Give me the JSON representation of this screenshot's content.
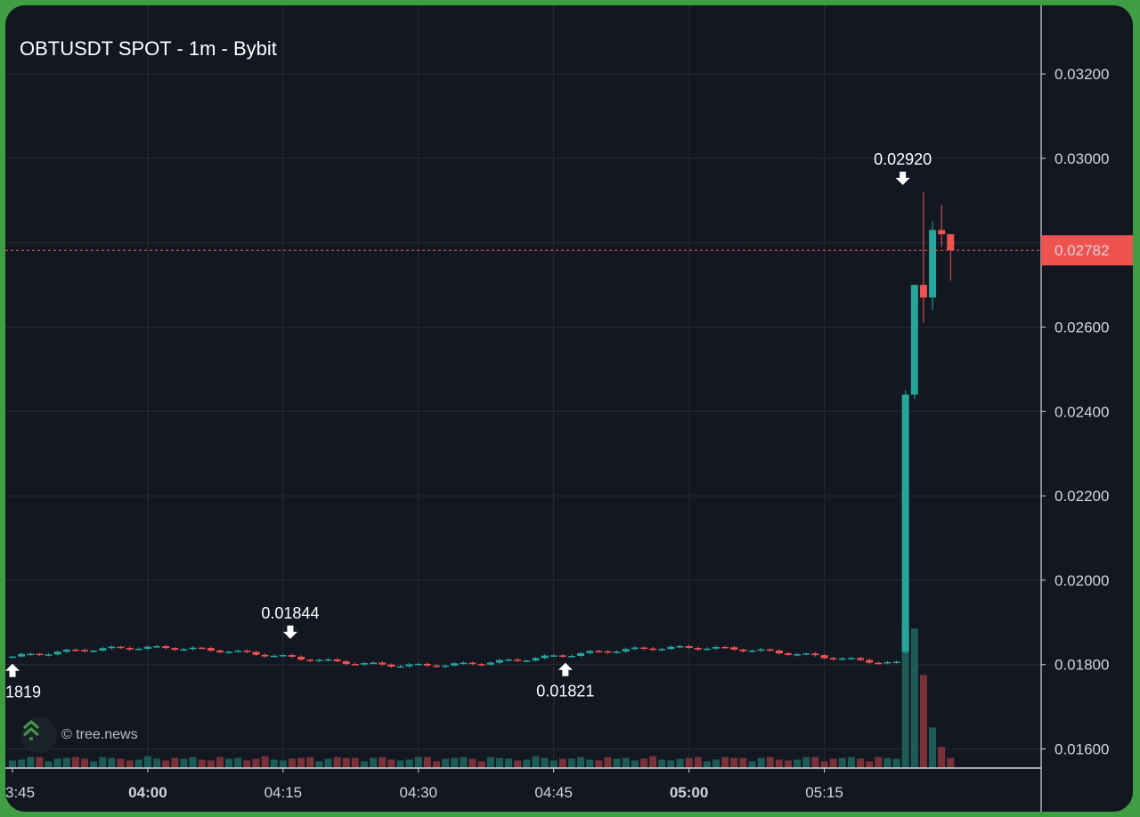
{
  "title": "OBTUSDT SPOT - 1m - Bybit",
  "watermark": "© tree.news",
  "colors": {
    "background": "#131722",
    "grid": "#262b37",
    "up": "#26a69a",
    "down": "#ef5350",
    "volume_up": "#1d5c56",
    "volume_down": "#7a3137",
    "axis_text": "#d1d4dc",
    "border": "#3f9d43"
  },
  "chart_data": {
    "type": "candlestick",
    "interval": "1m",
    "y_axis": {
      "side": "right",
      "ticks": [
        "0.01600",
        "0.01800",
        "0.02000",
        "0.02200",
        "0.02400",
        "0.02600",
        "0.02800",
        "0.03000",
        "0.03200"
      ]
    },
    "x_axis": {
      "ticks": [
        {
          "label": "3:45",
          "t": 0,
          "bold": false
        },
        {
          "label": "04:00",
          "t": 15,
          "bold": true
        },
        {
          "label": "04:15",
          "t": 30,
          "bold": false
        },
        {
          "label": "04:30",
          "t": 45,
          "bold": false
        },
        {
          "label": "04:45",
          "t": 60,
          "bold": false
        },
        {
          "label": "05:00",
          "t": 75,
          "bold": true
        },
        {
          "label": "05:15",
          "t": 90,
          "bold": false
        }
      ]
    },
    "last_price": {
      "value": 0.02782,
      "label": "0.02782",
      "color": "#ef5350"
    },
    "annotations": [
      {
        "label": "0.01844",
        "t": 30.8,
        "price": 0.01844,
        "arrow": "down"
      },
      {
        "label": "0.01821",
        "t": 61.3,
        "price": 0.01821,
        "arrow": "up"
      },
      {
        "label": "0.02920",
        "t": 98.7,
        "price": 0.0292,
        "arrow": "down"
      },
      {
        "label": "1819",
        "t": 0,
        "price": 0.01819,
        "arrow": "up"
      }
    ],
    "candles": []
  }
}
